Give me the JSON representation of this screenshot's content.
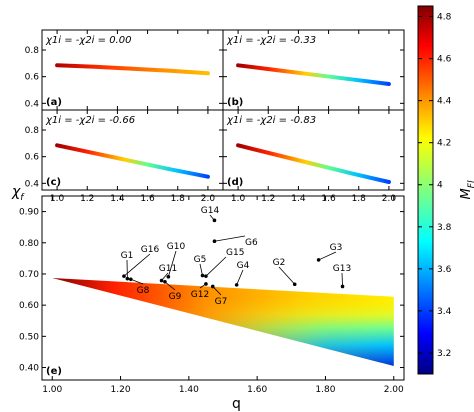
{
  "chart_data": [
    {
      "type": "line",
      "panel": "a",
      "panel_label": "(a)",
      "title": "χ1i = -χ2i = 0.00",
      "x": [
        1.0,
        1.25,
        1.5,
        1.75,
        2.0
      ],
      "y": [
        0.685,
        0.675,
        0.66,
        0.645,
        0.625
      ],
      "xlim": [
        0.9,
        2.1
      ],
      "ylim": [
        0.35,
        0.95
      ],
      "yticks": [
        "0.4",
        "0.6",
        "0.8"
      ]
    },
    {
      "type": "line",
      "panel": "b",
      "panel_label": "(b)",
      "title": "χ1i = -χ2i = -0.33",
      "x": [
        1.0,
        1.25,
        1.5,
        1.75,
        2.0
      ],
      "y": [
        0.685,
        0.65,
        0.615,
        0.58,
        0.545
      ],
      "xlim": [
        0.9,
        2.1
      ],
      "ylim": [
        0.35,
        0.95
      ]
    },
    {
      "type": "line",
      "panel": "c",
      "panel_label": "(c)",
      "title": "χ1i = -χ2i = -0.66",
      "x": [
        1.0,
        1.25,
        1.5,
        1.75,
        2.0
      ],
      "y": [
        0.685,
        0.625,
        0.565,
        0.505,
        0.45
      ],
      "xlim": [
        0.9,
        2.1
      ],
      "ylim": [
        0.35,
        0.95
      ],
      "xticks": [
        "1.0",
        "1.2",
        "1.4",
        "1.6",
        "1.8",
        "2.0"
      ],
      "yticks": [
        "0.4",
        "0.6",
        "0.8"
      ]
    },
    {
      "type": "line",
      "panel": "d",
      "panel_label": "(d)",
      "title": "χ1i = -χ2i = -0.83",
      "x": [
        1.0,
        1.25,
        1.5,
        1.75,
        2.0
      ],
      "y": [
        0.685,
        0.615,
        0.545,
        0.475,
        0.41
      ],
      "xlim": [
        0.9,
        2.1
      ],
      "ylim": [
        0.35,
        0.95
      ],
      "xticks": [
        "1.0",
        "1.2",
        "1.4",
        "1.6",
        "1.8",
        "2.0"
      ]
    },
    {
      "type": "scatter",
      "panel": "e",
      "panel_label": "(e)",
      "xlabel": "q",
      "ylabel": "χf",
      "xlim": [
        0.97,
        2.03
      ],
      "ylim": [
        0.36,
        0.95
      ],
      "xticks": [
        "1.00",
        "1.20",
        "1.40",
        "1.60",
        "1.80",
        "2.00"
      ],
      "yticks": [
        "0.40",
        "0.50",
        "0.60",
        "0.70",
        "0.80",
        "0.90"
      ],
      "region_boundary": {
        "apex": [
          1.0,
          0.687
        ],
        "upper_end": [
          2.0,
          0.627
        ],
        "lower_end": [
          2.0,
          0.405
        ]
      },
      "points": [
        {
          "name": "G1",
          "x": 1.22,
          "y": 0.685
        },
        {
          "name": "G2",
          "x": 1.71,
          "y": 0.667
        },
        {
          "name": "G3",
          "x": 1.78,
          "y": 0.745
        },
        {
          "name": "G4",
          "x": 1.54,
          "y": 0.665
        },
        {
          "name": "G5",
          "x": 1.44,
          "y": 0.695
        },
        {
          "name": "G6",
          "x": 1.475,
          "y": 0.805
        },
        {
          "name": "G7",
          "x": 1.47,
          "y": 0.66
        },
        {
          "name": "G8",
          "x": 1.23,
          "y": 0.683
        },
        {
          "name": "G9",
          "x": 1.33,
          "y": 0.675
        },
        {
          "name": "G10",
          "x": 1.34,
          "y": 0.691
        },
        {
          "name": "G11",
          "x": 1.32,
          "y": 0.679
        },
        {
          "name": "G12",
          "x": 1.45,
          "y": 0.668
        },
        {
          "name": "G13",
          "x": 1.85,
          "y": 0.66
        },
        {
          "name": "G14",
          "x": 1.475,
          "y": 0.872
        },
        {
          "name": "G15",
          "x": 1.45,
          "y": 0.693
        },
        {
          "name": "G16",
          "x": 1.21,
          "y": 0.693
        }
      ]
    }
  ],
  "colorbar": {
    "label": "M",
    "label_sub": "Fl",
    "min": 3.1,
    "max": 4.85,
    "ticks": [
      "3.2",
      "3.4",
      "3.6",
      "3.8",
      "4",
      "4.2",
      "4.4",
      "4.6",
      "4.8"
    ],
    "tick_values": [
      3.2,
      3.4,
      3.6,
      3.8,
      4.0,
      4.2,
      4.4,
      4.6,
      4.8
    ]
  }
}
